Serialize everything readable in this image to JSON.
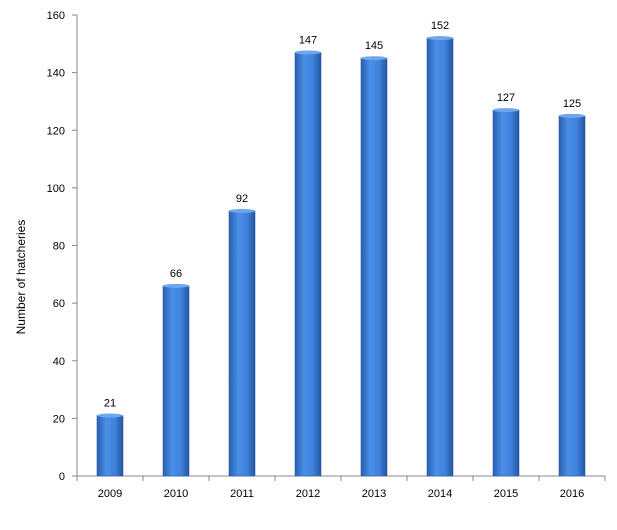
{
  "chart_data": {
    "type": "bar",
    "categories": [
      "2009",
      "2010",
      "2011",
      "2012",
      "2013",
      "2014",
      "2015",
      "2016"
    ],
    "values": [
      21,
      66,
      92,
      147,
      145,
      152,
      127,
      125
    ],
    "data_labels": [
      "21",
      "66",
      "92",
      "147",
      "145",
      "152",
      "127",
      "125"
    ],
    "title": "",
    "xlabel": "",
    "ylabel": "Number of hatcheries",
    "ylim": [
      0,
      160
    ],
    "yticks": [
      "0",
      "20",
      "40",
      "60",
      "80",
      "100",
      "120",
      "140",
      "160"
    ],
    "grid": false,
    "legend": "none",
    "bar_color": "#3a7bd5",
    "bar_edge_color": "#2b5fa8"
  }
}
